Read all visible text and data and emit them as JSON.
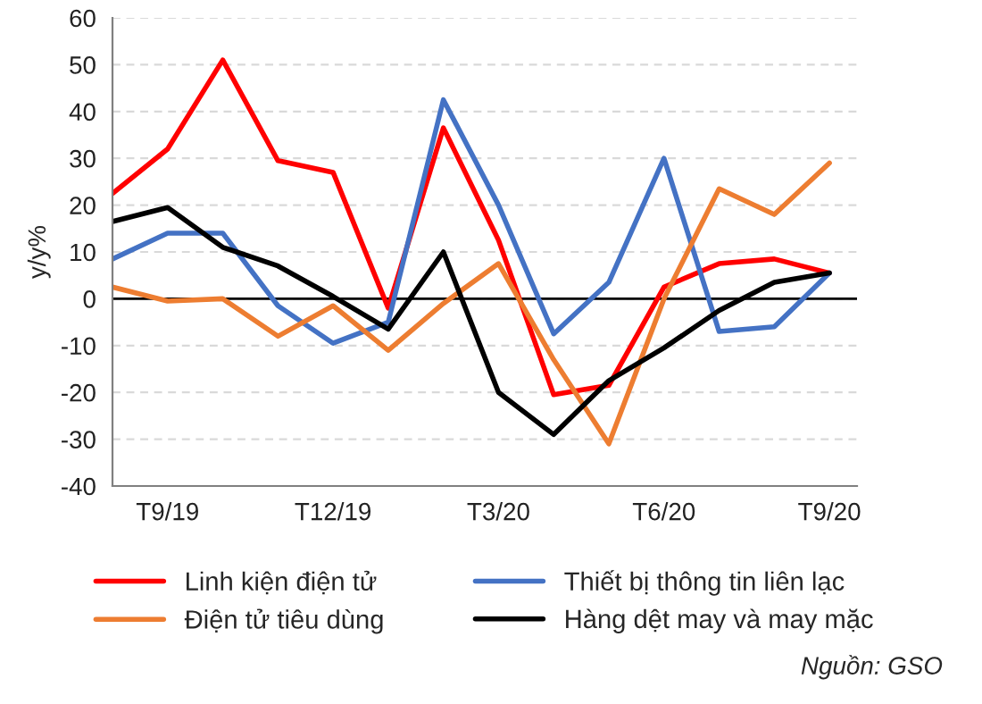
{
  "chart_data": {
    "type": "line",
    "ylabel": "y/y%",
    "categories": [
      null,
      "T9/19",
      null,
      null,
      "T12/19",
      null,
      null,
      "T3/20",
      null,
      null,
      "T6/20",
      null,
      null,
      "T9/20"
    ],
    "ylim": [
      -40,
      60
    ],
    "yticks": [
      -40,
      -30,
      -20,
      -10,
      0,
      10,
      20,
      30,
      40,
      50,
      60
    ],
    "grid": "y",
    "legend": "bottom",
    "line_style": "solid",
    "marker": "none",
    "ref_lines": [
      {
        "axis": "y",
        "value": 0,
        "color": "#000000"
      }
    ],
    "series": [
      {
        "name": "Linh kiện điện tử",
        "color": "#ff0000",
        "values": [
          22.5,
          32,
          51,
          29.5,
          27,
          -2,
          36.5,
          12.5,
          -20.5,
          -18.5,
          2.5,
          7.5,
          8.5,
          5.5
        ]
      },
      {
        "name": "Thiết bị thông tin liên lạc",
        "color": "#4472c4",
        "values": [
          8.5,
          14,
          14,
          -1.5,
          -9.5,
          -5,
          42.5,
          20,
          -7.5,
          3.5,
          30,
          -7,
          -6,
          5.5
        ]
      },
      {
        "name": "Điện tử tiêu dùng",
        "color": "#ed7d31",
        "values": [
          2.5,
          -0.5,
          0,
          -8,
          -1.5,
          -11,
          -1,
          7.5,
          -13,
          -31,
          0,
          23.5,
          18,
          29
        ]
      },
      {
        "name": "Hàng dệt may và may mặc",
        "color": "#000000",
        "values": [
          16.5,
          19.5,
          11,
          7,
          0.5,
          -6.5,
          10,
          -20,
          -29,
          -17.5,
          -10.5,
          -2.5,
          3.5,
          5.5
        ]
      }
    ],
    "annotations": [
      "Nguồn: GSO"
    ]
  }
}
